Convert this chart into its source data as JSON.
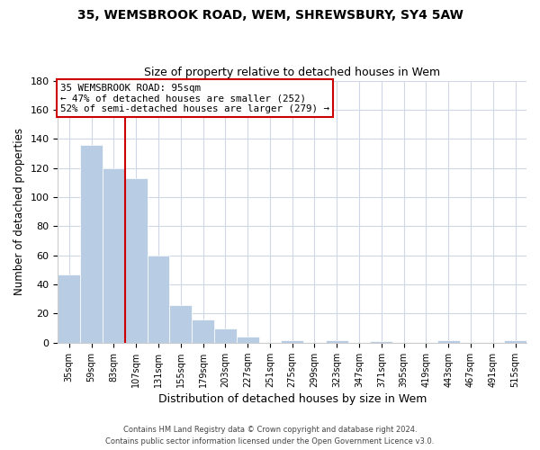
{
  "title_line1": "35, WEMSBROOK ROAD, WEM, SHREWSBURY, SY4 5AW",
  "title_line2": "Size of property relative to detached houses in Wem",
  "xlabel": "Distribution of detached houses by size in Wem",
  "ylabel": "Number of detached properties",
  "bar_labels": [
    "35sqm",
    "59sqm",
    "83sqm",
    "107sqm",
    "131sqm",
    "155sqm",
    "179sqm",
    "203sqm",
    "227sqm",
    "251sqm",
    "275sqm",
    "299sqm",
    "323sqm",
    "347sqm",
    "371sqm",
    "395sqm",
    "419sqm",
    "443sqm",
    "467sqm",
    "491sqm",
    "515sqm"
  ],
  "bar_values": [
    47,
    136,
    120,
    113,
    60,
    26,
    16,
    10,
    4,
    0,
    2,
    0,
    2,
    0,
    1,
    0,
    0,
    2,
    0,
    0,
    2
  ],
  "bar_color": "#b8cce4",
  "bar_edge_color": "#b8cce4",
  "vline_color": "#cc0000",
  "annotation_title": "35 WEMSBROOK ROAD: 95sqm",
  "annotation_line1": "← 47% of detached houses are smaller (252)",
  "annotation_line2": "52% of semi-detached houses are larger (279) →",
  "annotation_box_edge": "#cc0000",
  "ylim": [
    0,
    180
  ],
  "yticks": [
    0,
    20,
    40,
    60,
    80,
    100,
    120,
    140,
    160,
    180
  ],
  "footer_line1": "Contains HM Land Registry data © Crown copyright and database right 2024.",
  "footer_line2": "Contains public sector information licensed under the Open Government Licence v3.0.",
  "background_color": "#ffffff",
  "grid_color": "#d0d8e8"
}
